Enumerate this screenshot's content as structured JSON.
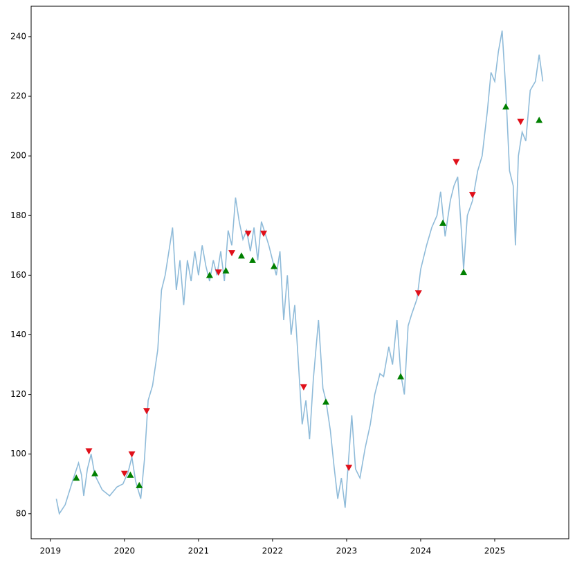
{
  "chart_data": {
    "type": "line",
    "xlim": [
      2018.74,
      2026.0
    ],
    "ylim": [
      71.6,
      250.2
    ],
    "xticks": [
      2019,
      2020,
      2021,
      2022,
      2023,
      2024,
      2025
    ],
    "yticks": [
      80,
      100,
      120,
      140,
      160,
      180,
      200,
      220,
      240
    ],
    "price": {
      "color": "#8fbbd9",
      "x": [
        2019.08,
        2019.12,
        2019.2,
        2019.3,
        2019.38,
        2019.42,
        2019.45,
        2019.5,
        2019.55,
        2019.6,
        2019.7,
        2019.8,
        2019.9,
        2019.98,
        2020.05,
        2020.1,
        2020.15,
        2020.22,
        2020.27,
        2020.32,
        2020.38,
        2020.45,
        2020.5,
        2020.55,
        2020.6,
        2020.65,
        2020.7,
        2020.75,
        2020.8,
        2020.85,
        2020.9,
        2020.95,
        2021.0,
        2021.05,
        2021.1,
        2021.15,
        2021.2,
        2021.25,
        2021.3,
        2021.35,
        2021.4,
        2021.45,
        2021.5,
        2021.55,
        2021.6,
        2021.65,
        2021.7,
        2021.75,
        2021.8,
        2021.85,
        2021.9,
        2021.95,
        2022.0,
        2022.05,
        2022.1,
        2022.15,
        2022.2,
        2022.25,
        2022.3,
        2022.35,
        2022.4,
        2022.45,
        2022.5,
        2022.55,
        2022.62,
        2022.68,
        2022.72,
        2022.78,
        2022.83,
        2022.88,
        2022.93,
        2022.98,
        2023.02,
        2023.07,
        2023.12,
        2023.18,
        2023.25,
        2023.32,
        2023.38,
        2023.45,
        2023.5,
        2023.57,
        2023.62,
        2023.68,
        2023.73,
        2023.78,
        2023.83,
        2023.88,
        2023.95,
        2024.0,
        2024.08,
        2024.15,
        2024.22,
        2024.27,
        2024.33,
        2024.4,
        2024.45,
        2024.5,
        2024.55,
        2024.58,
        2024.63,
        2024.7,
        2024.77,
        2024.83,
        2024.9,
        2024.95,
        2025.0,
        2025.05,
        2025.1,
        2025.15,
        2025.2,
        2025.25,
        2025.28,
        2025.32,
        2025.37,
        2025.42,
        2025.48,
        2025.55,
        2025.6,
        2025.65
      ],
      "values": [
        85,
        80,
        83,
        91,
        97,
        93,
        86,
        95,
        100,
        93,
        88,
        86,
        89,
        90,
        94,
        99,
        91,
        85,
        98,
        118,
        123,
        135,
        155,
        160,
        168,
        176,
        155,
        165,
        150,
        165,
        158,
        168,
        160,
        170,
        163,
        158,
        165,
        160,
        168,
        158,
        175,
        170,
        186,
        178,
        172,
        175,
        168,
        176,
        165,
        178,
        174,
        170,
        165,
        160,
        168,
        145,
        160,
        140,
        150,
        130,
        110,
        118,
        105,
        125,
        145,
        122,
        118,
        108,
        96,
        85,
        92,
        82,
        96,
        113,
        95,
        92,
        102,
        110,
        120,
        127,
        126,
        136,
        130,
        145,
        127,
        120,
        143,
        147,
        152,
        162,
        170,
        176,
        180,
        188,
        173,
        185,
        190,
        193,
        175,
        162,
        180,
        185,
        195,
        200,
        215,
        228,
        225,
        235,
        242,
        222,
        195,
        190,
        170,
        200,
        208,
        205,
        222,
        225,
        234,
        225
      ]
    },
    "buy": {
      "color": "#008000",
      "x": [
        2019.35,
        2019.6,
        2020.08,
        2020.2,
        2021.15,
        2021.37,
        2021.58,
        2021.73,
        2022.02,
        2022.72,
        2023.73,
        2024.3,
        2024.58,
        2025.15,
        2025.6
      ],
      "values": [
        92,
        93.5,
        93,
        89.5,
        160,
        161.5,
        166.5,
        165,
        163,
        117.5,
        126,
        177.5,
        161,
        216.5,
        212
      ]
    },
    "sell": {
      "color": "#e0101a",
      "x": [
        2019.52,
        2020.0,
        2020.1,
        2020.3,
        2021.27,
        2021.45,
        2021.67,
        2021.88,
        2022.42,
        2023.03,
        2023.97,
        2024.48,
        2024.7,
        2025.35
      ],
      "values": [
        101,
        93.5,
        100,
        114.5,
        161,
        167.5,
        174,
        174,
        122.5,
        95.5,
        154,
        198,
        187,
        211.5
      ]
    }
  }
}
